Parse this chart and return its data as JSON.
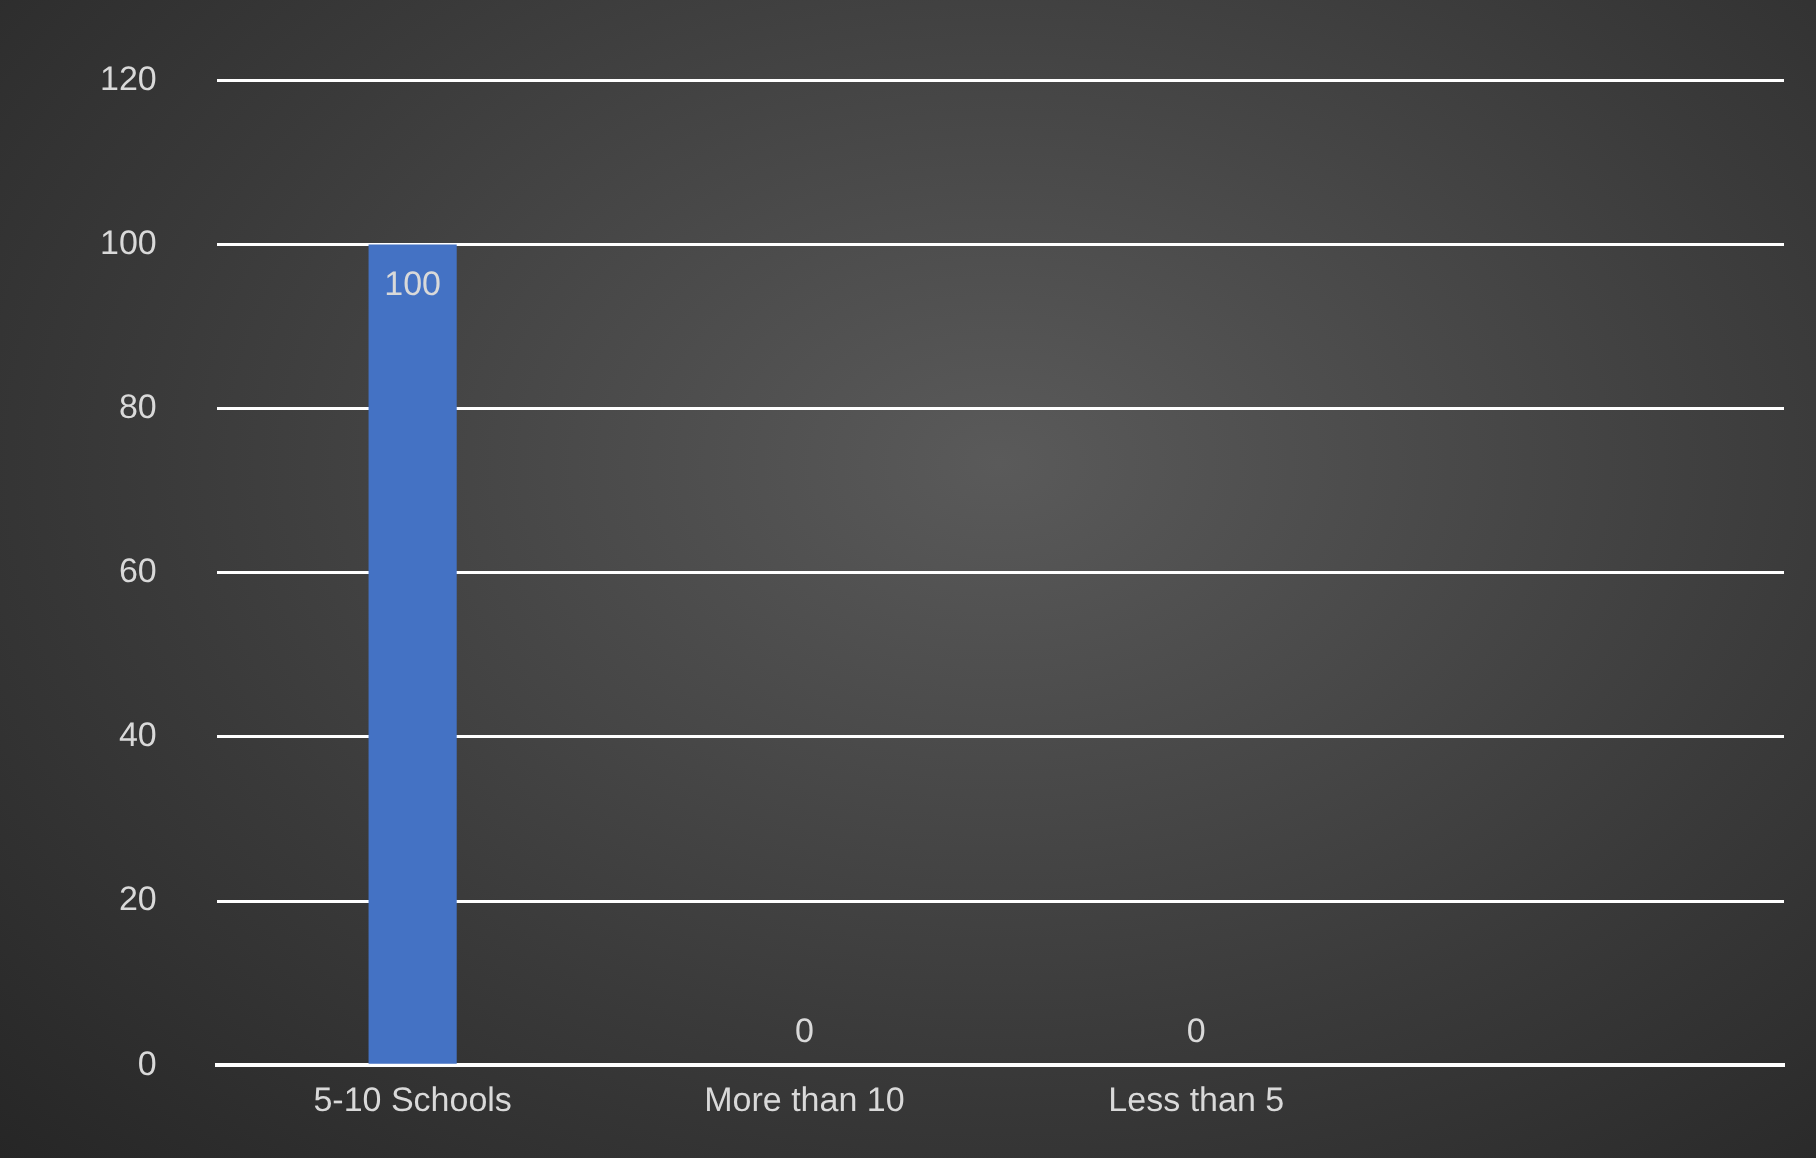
{
  "chart_data": {
    "type": "bar",
    "categories": [
      "5-10 Schools",
      "More than 10",
      "Less than 5",
      null
    ],
    "values": [
      100,
      0,
      0,
      null
    ],
    "color": "#4472c4",
    "ylim": [
      0,
      120
    ],
    "yticks": [
      0,
      20,
      40,
      60,
      80,
      100,
      120
    ],
    "grid": "y",
    "legend": false,
    "data_labels": true
  }
}
